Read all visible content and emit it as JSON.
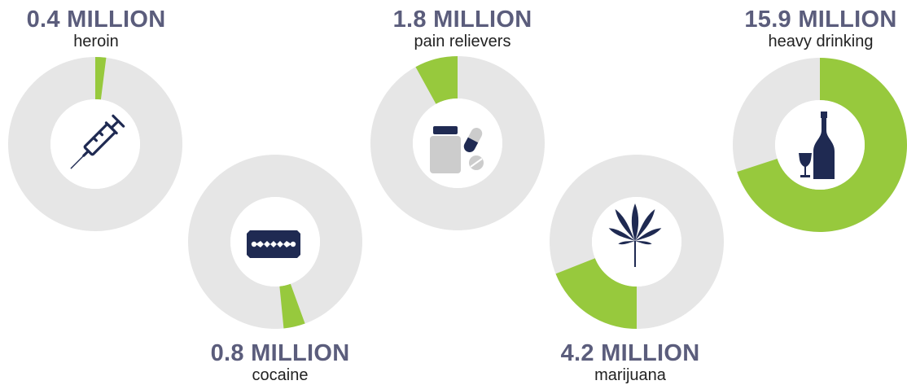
{
  "chart_data": {
    "type": "pie",
    "style": "donut",
    "colors": {
      "share": "#97c93d",
      "remainder": "#e6e6e6",
      "icon": "#1f2a52"
    },
    "items": [
      {
        "value_label": "0.4 MILLION",
        "name": "heroin",
        "share_percent": 2,
        "icon": "syringe-icon"
      },
      {
        "value_label": "0.8 MILLION",
        "name": "cocaine",
        "share_percent": 4,
        "icon": "razor-blade-icon"
      },
      {
        "value_label": "1.8 MILLION",
        "name": "pain relievers",
        "share_percent": 8,
        "icon": "pill-bottle-icon"
      },
      {
        "value_label": "4.2 MILLION",
        "name": "marijuana",
        "share_percent": 19,
        "icon": "cannabis-leaf-icon"
      },
      {
        "value_label": "15.9 MILLION",
        "name": "heavy drinking",
        "share_percent": 70,
        "icon": "wine-bottle-icon"
      }
    ]
  }
}
